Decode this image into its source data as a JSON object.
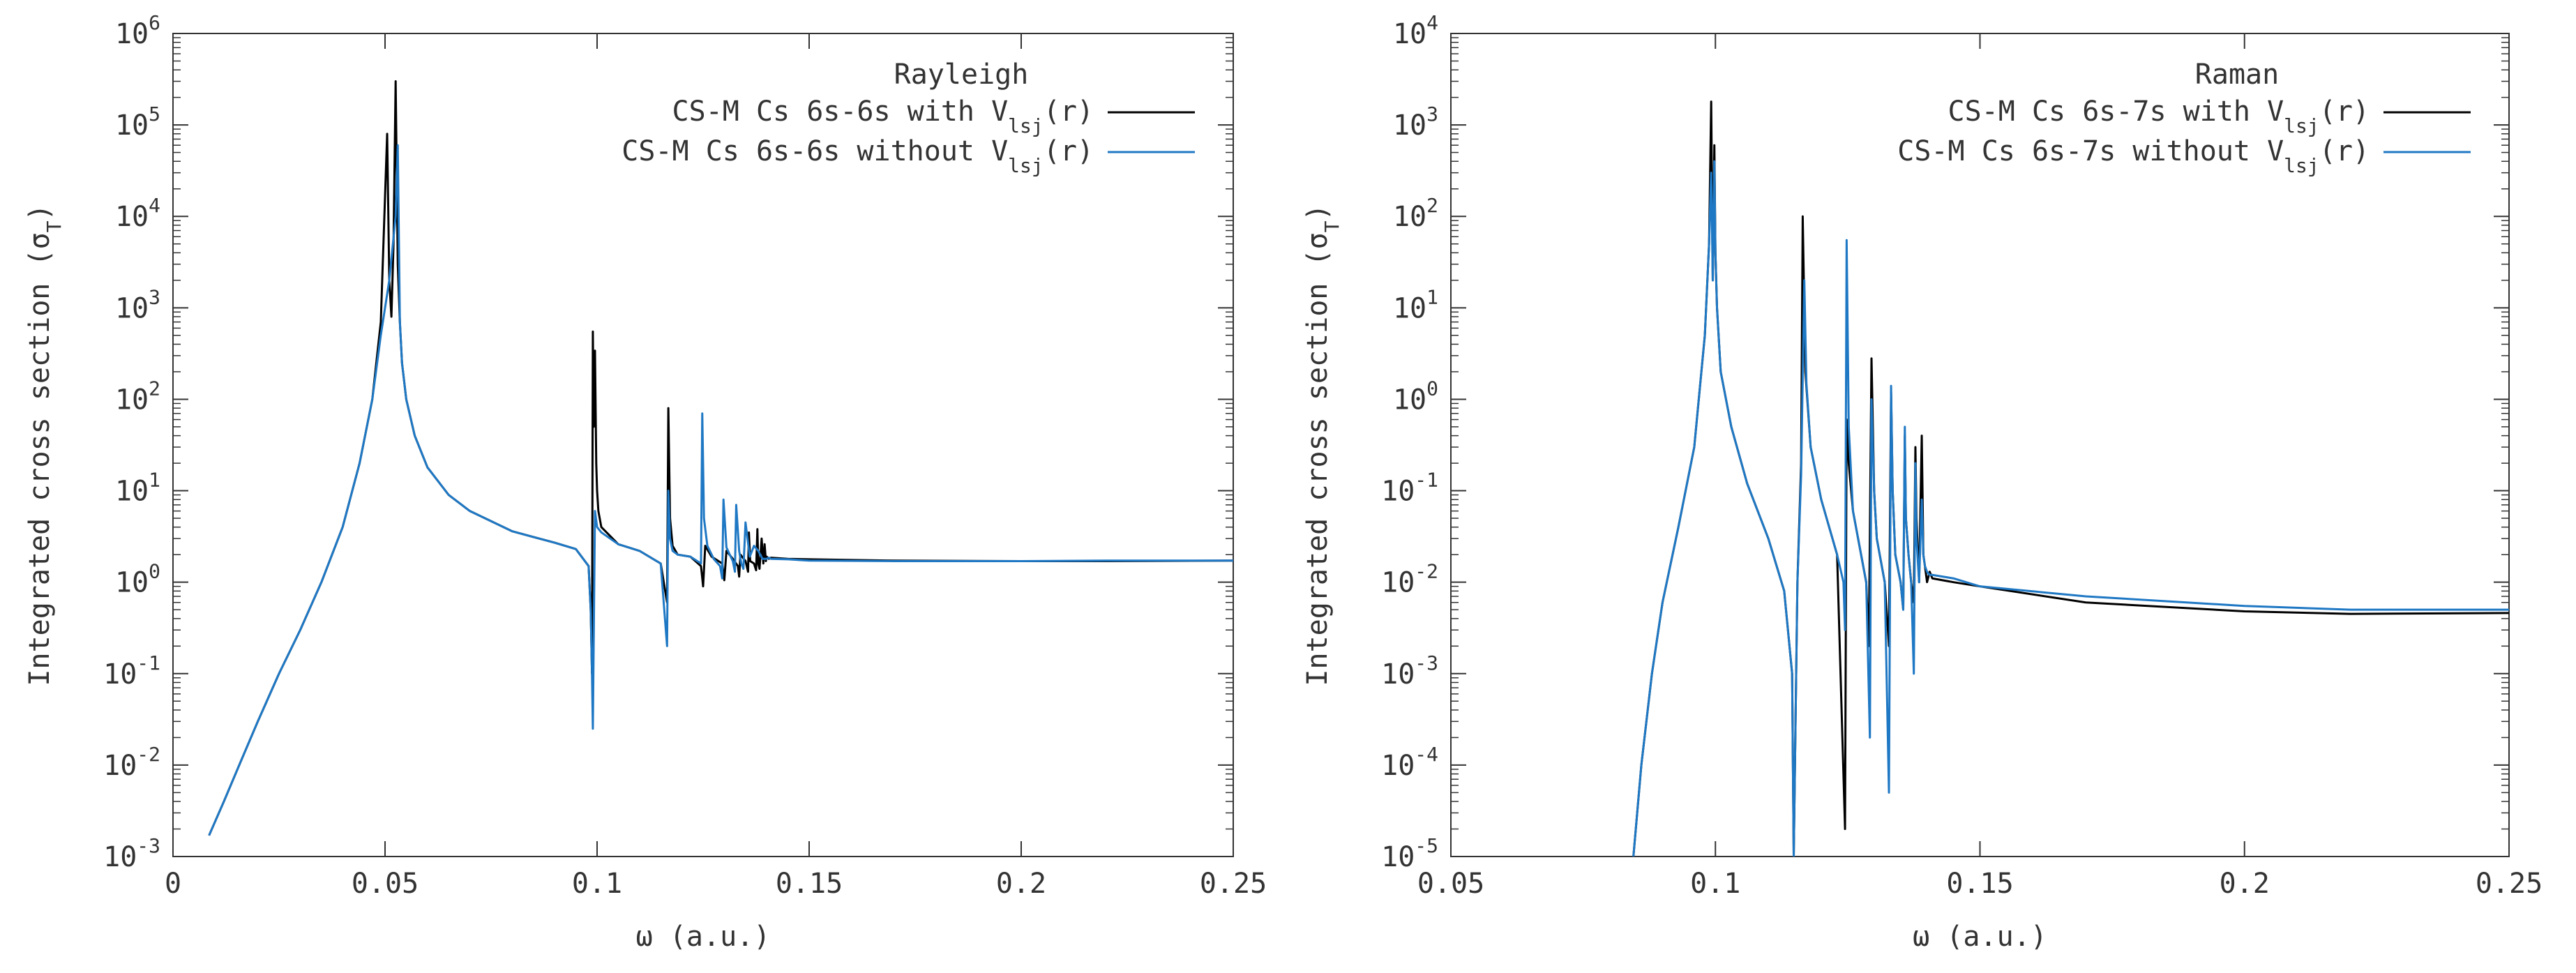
{
  "colors": {
    "with": "#000000",
    "without": "#1f78c4",
    "axis": "#333333"
  },
  "chart_data": [
    {
      "type": "line",
      "legend_title": "Rayleigh",
      "legend_position": "top-right",
      "xlabel": "ω (a.u.)",
      "ylabel_main": "Integrated cross section (σ",
      "ylabel_sub": "T",
      "ylabel_tail": ")",
      "x_log": false,
      "y_log": true,
      "xlim": [
        0,
        0.25
      ],
      "ylim": [
        0.001,
        1000000
      ],
      "x_ticks": [
        0,
        0.05,
        0.1,
        0.15,
        0.2,
        0.25
      ],
      "x_tick_labels": [
        "0",
        "0.05",
        "0.1",
        "0.15",
        "0.2",
        "0.25"
      ],
      "y_ticks": [
        {
          "base": "10",
          "exp": "-3"
        },
        {
          "base": "10",
          "exp": "-2"
        },
        {
          "base": "10",
          "exp": "-1"
        },
        {
          "base": "10",
          "exp": "0"
        },
        {
          "base": "10",
          "exp": "1"
        },
        {
          "base": "10",
          "exp": "2"
        },
        {
          "base": "10",
          "exp": "3"
        },
        {
          "base": "10",
          "exp": "4"
        },
        {
          "base": "10",
          "exp": "5"
        },
        {
          "base": "10",
          "exp": "6"
        }
      ],
      "series": [
        {
          "name_main": "CS-M Cs 6s-6s with V",
          "name_sub": "lsj",
          "name_tail": "(r)",
          "color": "#000000",
          "x": [
            0.0085,
            0.012,
            0.016,
            0.02,
            0.025,
            0.03,
            0.035,
            0.04,
            0.044,
            0.047,
            0.049,
            0.0505,
            0.051,
            0.0515,
            0.052,
            0.0525,
            0.053,
            0.0535,
            0.054,
            0.055,
            0.057,
            0.06,
            0.065,
            0.07,
            0.08,
            0.09,
            0.095,
            0.098,
            0.0985,
            0.0988,
            0.099,
            0.0992,
            0.0995,
            0.0998,
            0.1,
            0.1003,
            0.101,
            0.105,
            0.11,
            0.115,
            0.1165,
            0.1168,
            0.1172,
            0.1178,
            0.119,
            0.122,
            0.1245,
            0.125,
            0.1255,
            0.127,
            0.1295,
            0.13,
            0.1305,
            0.132,
            0.1332,
            0.1335,
            0.1338,
            0.135,
            0.1356,
            0.1358,
            0.1361,
            0.137,
            0.1375,
            0.1378,
            0.138,
            0.1383,
            0.1388,
            0.1392,
            0.1395,
            0.1398,
            0.14,
            0.1405,
            0.141,
            0.145,
            0.15,
            0.17,
            0.2,
            0.22,
            0.25
          ],
          "y": [
            0.0017,
            0.004,
            0.011,
            0.03,
            0.1,
            0.3,
            1.0,
            4.0,
            20,
            100,
            700,
            80000,
            2000,
            800,
            5000,
            300000,
            3000,
            700,
            250,
            100,
            40,
            18,
            9,
            6,
            3.6,
            2.7,
            2.3,
            1.5,
            0.5,
            0.1,
            550,
            50,
            340,
            20,
            10,
            6,
            4,
            2.6,
            2.2,
            1.6,
            0.6,
            80,
            5,
            2.5,
            2.0,
            1.9,
            1.5,
            0.9,
            2.5,
            1.9,
            1.6,
            1.05,
            2.2,
            1.8,
            1.5,
            1.15,
            2.0,
            1.7,
            1.3,
            3.5,
            1.7,
            1.6,
            1.35,
            3.8,
            1.6,
            1.4,
            3.0,
            1.6,
            2.6,
            1.7,
            1.9,
            1.8,
            1.85,
            1.8,
            1.78,
            1.72,
            1.7,
            1.7,
            1.72
          ]
        },
        {
          "name_main": "CS-M Cs 6s-6s without V",
          "name_sub": "lsj",
          "name_tail": "(r)",
          "color": "#1f78c4",
          "x": [
            0.0085,
            0.012,
            0.016,
            0.02,
            0.025,
            0.03,
            0.035,
            0.04,
            0.044,
            0.047,
            0.049,
            0.051,
            0.0525,
            0.053,
            0.0535,
            0.054,
            0.055,
            0.057,
            0.06,
            0.065,
            0.07,
            0.08,
            0.09,
            0.095,
            0.098,
            0.0985,
            0.0988,
            0.099,
            0.0995,
            0.1,
            0.101,
            0.105,
            0.11,
            0.115,
            0.1165,
            0.1168,
            0.1172,
            0.1178,
            0.119,
            0.122,
            0.1245,
            0.1248,
            0.1252,
            0.126,
            0.1275,
            0.129,
            0.1295,
            0.1298,
            0.1305,
            0.132,
            0.1325,
            0.1328,
            0.1335,
            0.134,
            0.1345,
            0.135,
            0.136,
            0.137,
            0.138,
            0.139,
            0.14,
            0.1405,
            0.141,
            0.145,
            0.15,
            0.17,
            0.2,
            0.22,
            0.25
          ],
          "y": [
            0.0017,
            0.004,
            0.011,
            0.03,
            0.1,
            0.3,
            1.0,
            4.0,
            20,
            100,
            500,
            2000,
            10000,
            60000,
            700,
            250,
            100,
            40,
            18,
            9,
            6,
            3.6,
            2.7,
            2.3,
            1.5,
            0.5,
            0.1,
            0.025,
            6,
            4,
            3.5,
            2.6,
            2.2,
            1.6,
            0.2,
            10,
            3,
            2.2,
            2.0,
            1.9,
            1.6,
            70,
            5,
            2.5,
            1.8,
            1.5,
            1.1,
            8,
            2.4,
            1.7,
            1.3,
            7,
            2.2,
            1.6,
            1.4,
            4.5,
            1.9,
            2.5,
            2.2,
            1.8,
            1.8,
            1.85,
            1.8,
            1.78,
            1.72,
            1.7,
            1.7,
            1.72,
            1.72
          ]
        }
      ]
    },
    {
      "type": "line",
      "legend_title": "Raman",
      "legend_position": "top-right",
      "xlabel": "ω (a.u.)",
      "ylabel_main": "Integrated cross section (σ",
      "ylabel_sub": "T",
      "ylabel_tail": ")",
      "x_log": false,
      "y_log": true,
      "xlim": [
        0.05,
        0.25
      ],
      "ylim": [
        1e-05,
        10000
      ],
      "x_ticks": [
        0.05,
        0.1,
        0.15,
        0.2,
        0.25
      ],
      "x_tick_labels": [
        "0.05",
        "0.1",
        "0.15",
        "0.2",
        "0.25"
      ],
      "y_ticks": [
        {
          "base": "10",
          "exp": "-5"
        },
        {
          "base": "10",
          "exp": "-4"
        },
        {
          "base": "10",
          "exp": "-3"
        },
        {
          "base": "10",
          "exp": "-2"
        },
        {
          "base": "10",
          "exp": "-1"
        },
        {
          "base": "10",
          "exp": "0"
        },
        {
          "base": "10",
          "exp": "1"
        },
        {
          "base": "10",
          "exp": "2"
        },
        {
          "base": "10",
          "exp": "3"
        },
        {
          "base": "10",
          "exp": "4"
        }
      ],
      "series": [
        {
          "name_main": "CS-M Cs 6s-7s with V",
          "name_sub": "lsj",
          "name_tail": "(r)",
          "color": "#000000",
          "x": [
            0.0845,
            0.086,
            0.088,
            0.09,
            0.093,
            0.096,
            0.098,
            0.0988,
            0.0992,
            0.0995,
            0.0998,
            0.1,
            0.1003,
            0.101,
            0.103,
            0.106,
            0.11,
            0.113,
            0.1145,
            0.1148,
            0.1155,
            0.1162,
            0.1165,
            0.117,
            0.118,
            0.12,
            0.123,
            0.1245,
            0.1248,
            0.1252,
            0.126,
            0.1285,
            0.129,
            0.1295,
            0.13,
            0.1305,
            0.132,
            0.1328,
            0.1332,
            0.1335,
            0.134,
            0.135,
            0.1355,
            0.1358,
            0.136,
            0.1365,
            0.137,
            0.1375,
            0.1378,
            0.138,
            0.1385,
            0.139,
            0.1393,
            0.1396,
            0.14,
            0.1405,
            0.141,
            0.145,
            0.15,
            0.17,
            0.2,
            0.22,
            0.25
          ],
          "y": [
            1e-05,
            0.0001,
            0.001,
            0.006,
            0.04,
            0.3,
            5,
            50,
            1800,
            20,
            600,
            40,
            10,
            2,
            0.5,
            0.12,
            0.03,
            0.008,
            0.001,
            1e-05,
            0.01,
            0.2,
            100,
            2,
            0.3,
            0.08,
            0.02,
            2e-05,
            0.6,
            0.2,
            0.06,
            0.01,
            0.002,
            2.8,
            0.1,
            0.03,
            0.01,
            0.002,
            1.2,
            0.1,
            0.02,
            0.01,
            0.005,
            0.4,
            0.05,
            0.02,
            0.01,
            0.006,
            0.3,
            0.05,
            0.01,
            0.4,
            0.02,
            0.015,
            0.01,
            0.013,
            0.011,
            0.01,
            0.009,
            0.006,
            0.0048,
            0.0045,
            0.0046
          ]
        },
        {
          "name_main": "CS-M Cs 6s-7s without V",
          "name_sub": "lsj",
          "name_tail": "(r)",
          "color": "#1f78c4",
          "x": [
            0.0845,
            0.086,
            0.088,
            0.09,
            0.093,
            0.096,
            0.098,
            0.0988,
            0.0992,
            0.0995,
            0.0998,
            0.1,
            0.1003,
            0.101,
            0.103,
            0.106,
            0.11,
            0.113,
            0.1145,
            0.1148,
            0.1155,
            0.1162,
            0.1168,
            0.1172,
            0.118,
            0.12,
            0.123,
            0.1242,
            0.1245,
            0.1248,
            0.1252,
            0.126,
            0.1285,
            0.1292,
            0.1295,
            0.13,
            0.1305,
            0.132,
            0.1328,
            0.1332,
            0.1335,
            0.134,
            0.135,
            0.1355,
            0.1358,
            0.136,
            0.1365,
            0.137,
            0.1375,
            0.1378,
            0.138,
            0.1385,
            0.139,
            0.1393,
            0.1396,
            0.14,
            0.1405,
            0.141,
            0.145,
            0.15,
            0.17,
            0.2,
            0.22,
            0.25
          ],
          "y": [
            1e-05,
            0.0001,
            0.001,
            0.006,
            0.04,
            0.3,
            5,
            50,
            300,
            20,
            400,
            40,
            10,
            2,
            0.5,
            0.12,
            0.03,
            0.008,
            0.001,
            1e-05,
            0.01,
            0.15,
            20,
            1.5,
            0.3,
            0.08,
            0.02,
            0.01,
            0.003,
            55,
            0.5,
            0.06,
            0.01,
            0.0002,
            1.0,
            0.1,
            0.03,
            0.01,
            5e-05,
            1.4,
            0.1,
            0.02,
            0.01,
            0.005,
            0.5,
            0.05,
            0.02,
            0.01,
            0.001,
            0.2,
            0.03,
            0.01,
            0.08,
            0.02,
            0.015,
            0.013,
            0.012,
            0.012,
            0.011,
            0.009,
            0.007,
            0.0055,
            0.005,
            0.005
          ]
        }
      ]
    }
  ]
}
